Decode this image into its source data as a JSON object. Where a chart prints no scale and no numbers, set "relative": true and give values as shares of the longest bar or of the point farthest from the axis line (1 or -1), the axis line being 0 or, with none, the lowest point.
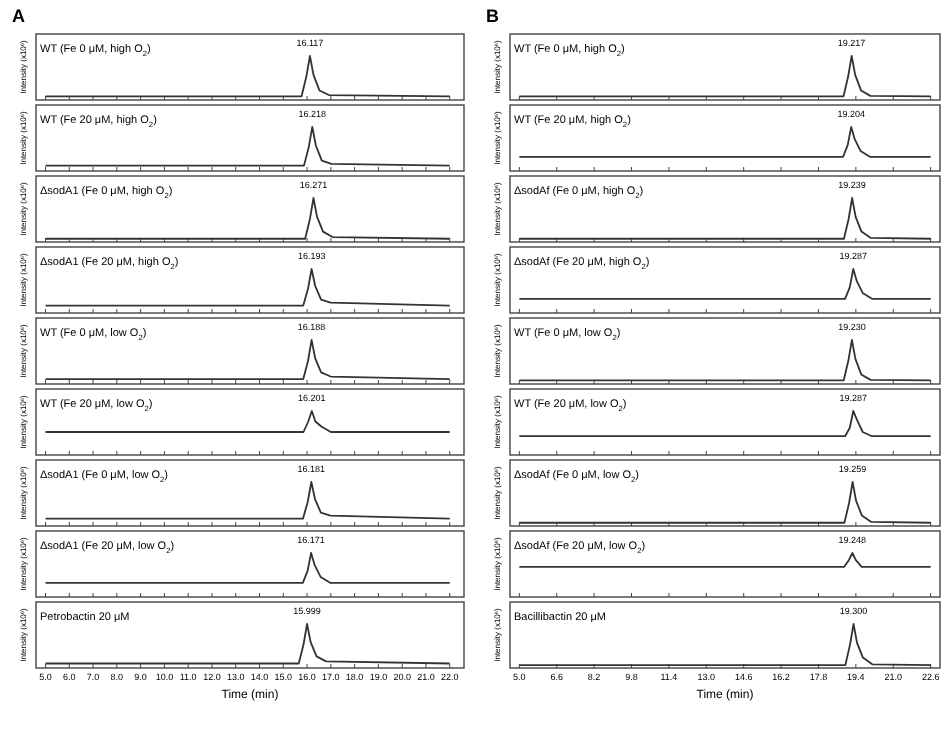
{
  "chart_data": [
    {
      "type": "line",
      "title": "A",
      "ylabel": "Intensity (x10⁶)",
      "relative": true,
      "xlim": [
        4.6,
        22.6
      ],
      "xticks": [
        {
          "value": 5,
          "label": null
        },
        {
          "value": 6,
          "label": null
        },
        {
          "value": 7,
          "label": null
        },
        {
          "value": 8,
          "label": null
        },
        {
          "value": 9,
          "label": null
        },
        {
          "value": 10,
          "label": null
        },
        {
          "value": 11,
          "label": null
        },
        {
          "value": 12,
          "label": null
        },
        {
          "value": 13,
          "label": null
        },
        {
          "value": 14,
          "label": null
        },
        {
          "value": 15,
          "label": null
        },
        {
          "value": 16,
          "label": null
        },
        {
          "value": 17,
          "label": null
        },
        {
          "value": 18,
          "label": null
        },
        {
          "value": 19,
          "label": null
        },
        {
          "value": 20,
          "label": null
        },
        {
          "value": 21,
          "label": null
        },
        {
          "value": 22,
          "label": null
        }
      ],
      "tick_labels": false,
      "series": [
        {
          "color": "#333333",
          "x": [
            5,
            15.77,
            15.97,
            16.12,
            16.27,
            16.52,
            16.92,
            22
          ],
          "values": [
            0.04,
            0.04,
            0.51,
            1,
            0.55,
            0.18,
            0.07,
            0.04
          ]
        }
      ],
      "annotations": [
        "WT (Fe 0 μM, high O$_{2}$)",
        {
          "text": "16.117",
          "x": 16.117,
          "y": 1
        }
      ]
    },
    {
      "type": "line",
      "ylabel": "Intensity (x10⁶)",
      "relative": true,
      "xlim": [
        4.6,
        22.6
      ],
      "xticks": [
        {
          "value": 5,
          "label": null
        },
        {
          "value": 6,
          "label": null
        },
        {
          "value": 7,
          "label": null
        },
        {
          "value": 8,
          "label": null
        },
        {
          "value": 9,
          "label": null
        },
        {
          "value": 10,
          "label": null
        },
        {
          "value": 11,
          "label": null
        },
        {
          "value": 12,
          "label": null
        },
        {
          "value": 13,
          "label": null
        },
        {
          "value": 14,
          "label": null
        },
        {
          "value": 15,
          "label": null
        },
        {
          "value": 16,
          "label": null
        },
        {
          "value": 17,
          "label": null
        },
        {
          "value": 18,
          "label": null
        },
        {
          "value": 19,
          "label": null
        },
        {
          "value": 20,
          "label": null
        },
        {
          "value": 21,
          "label": null
        },
        {
          "value": 22,
          "label": null
        }
      ],
      "tick_labels": false,
      "series": [
        {
          "color": "#333333",
          "x": [
            5,
            15.87,
            16.07,
            16.22,
            16.37,
            16.62,
            17.02,
            22
          ],
          "values": [
            0.08,
            0.08,
            0.52,
            1,
            0.56,
            0.2,
            0.12,
            0.08
          ]
        }
      ],
      "annotations": [
        "WT (Fe 20 μM, high O$_{2}$)",
        {
          "text": "16.218",
          "x": 16.218,
          "y": 1
        }
      ]
    },
    {
      "type": "line",
      "ylabel": "Intensity (x10⁶)",
      "relative": true,
      "xlim": [
        4.6,
        22.6
      ],
      "xticks": [
        {
          "value": 5,
          "label": null
        },
        {
          "value": 6,
          "label": null
        },
        {
          "value": 7,
          "label": null
        },
        {
          "value": 8,
          "label": null
        },
        {
          "value": 9,
          "label": null
        },
        {
          "value": 10,
          "label": null
        },
        {
          "value": 11,
          "label": null
        },
        {
          "value": 12,
          "label": null
        },
        {
          "value": 13,
          "label": null
        },
        {
          "value": 14,
          "label": null
        },
        {
          "value": 15,
          "label": null
        },
        {
          "value": 16,
          "label": null
        },
        {
          "value": 17,
          "label": null
        },
        {
          "value": 18,
          "label": null
        },
        {
          "value": 19,
          "label": null
        },
        {
          "value": 20,
          "label": null
        },
        {
          "value": 21,
          "label": null
        },
        {
          "value": 22,
          "label": null
        }
      ],
      "tick_labels": false,
      "series": [
        {
          "color": "#333333",
          "x": [
            5,
            15.92,
            16.12,
            16.27,
            16.42,
            16.67,
            17.07,
            22
          ],
          "values": [
            0.03,
            0.03,
            0.5,
            1,
            0.55,
            0.2,
            0.07,
            0.03
          ]
        }
      ],
      "annotations": [
        "ΔsodA1 (Fe 0 μM, high O$_{2}$)",
        {
          "text": "16.271",
          "x": 16.271,
          "y": 1
        }
      ]
    },
    {
      "type": "line",
      "ylabel": "Intensity (x10⁶)",
      "relative": true,
      "xlim": [
        4.6,
        22.6
      ],
      "xticks": [
        {
          "value": 5,
          "label": null
        },
        {
          "value": 6,
          "label": null
        },
        {
          "value": 7,
          "label": null
        },
        {
          "value": 8,
          "label": null
        },
        {
          "value": 9,
          "label": null
        },
        {
          "value": 10,
          "label": null
        },
        {
          "value": 11,
          "label": null
        },
        {
          "value": 12,
          "label": null
        },
        {
          "value": 13,
          "label": null
        },
        {
          "value": 14,
          "label": null
        },
        {
          "value": 15,
          "label": null
        },
        {
          "value": 16,
          "label": null
        },
        {
          "value": 17,
          "label": null
        },
        {
          "value": 18,
          "label": null
        },
        {
          "value": 19,
          "label": null
        },
        {
          "value": 20,
          "label": null
        },
        {
          "value": 21,
          "label": null
        },
        {
          "value": 22,
          "label": null
        }
      ],
      "tick_labels": false,
      "series": [
        {
          "color": "#333333",
          "x": [
            5,
            15.84,
            16.04,
            16.19,
            16.34,
            16.59,
            16.99,
            22
          ],
          "values": [
            0.13,
            0.13,
            0.53,
            1,
            0.6,
            0.27,
            0.2,
            0.13
          ]
        }
      ],
      "annotations": [
        "ΔsodA1 (Fe 20 μM, high O$_{2}$)",
        {
          "text": "16.193",
          "x": 16.193,
          "y": 1
        }
      ]
    },
    {
      "type": "line",
      "ylabel": "Intensity (x10⁶)",
      "relative": true,
      "xlim": [
        4.6,
        22.6
      ],
      "xticks": [
        {
          "value": 5,
          "label": null
        },
        {
          "value": 6,
          "label": null
        },
        {
          "value": 7,
          "label": null
        },
        {
          "value": 8,
          "label": null
        },
        {
          "value": 9,
          "label": null
        },
        {
          "value": 10,
          "label": null
        },
        {
          "value": 11,
          "label": null
        },
        {
          "value": 12,
          "label": null
        },
        {
          "value": 13,
          "label": null
        },
        {
          "value": 14,
          "label": null
        },
        {
          "value": 15,
          "label": null
        },
        {
          "value": 16,
          "label": null
        },
        {
          "value": 17,
          "label": null
        },
        {
          "value": 18,
          "label": null
        },
        {
          "value": 19,
          "label": null
        },
        {
          "value": 20,
          "label": null
        },
        {
          "value": 21,
          "label": null
        },
        {
          "value": 22,
          "label": null
        }
      ],
      "tick_labels": false,
      "series": [
        {
          "color": "#333333",
          "x": [
            5,
            15.84,
            16.04,
            16.19,
            16.34,
            16.59,
            16.99,
            22
          ],
          "values": [
            0.07,
            0.07,
            0.5,
            1,
            0.57,
            0.23,
            0.13,
            0.07
          ]
        }
      ],
      "annotations": [
        "WT (Fe 0 μM, low O$_{2}$)",
        {
          "text": "16.188",
          "x": 16.188,
          "y": 1
        }
      ]
    },
    {
      "type": "line",
      "ylabel": "Intensity (x10⁶)",
      "relative": true,
      "xlim": [
        4.6,
        22.6
      ],
      "xticks": [
        {
          "value": 5,
          "label": null
        },
        {
          "value": 6,
          "label": null
        },
        {
          "value": 7,
          "label": null
        },
        {
          "value": 8,
          "label": null
        },
        {
          "value": 9,
          "label": null
        },
        {
          "value": 10,
          "label": null
        },
        {
          "value": 11,
          "label": null
        },
        {
          "value": 12,
          "label": null
        },
        {
          "value": 13,
          "label": null
        },
        {
          "value": 14,
          "label": null
        },
        {
          "value": 15,
          "label": null
        },
        {
          "value": 16,
          "label": null
        },
        {
          "value": 17,
          "label": null
        },
        {
          "value": 18,
          "label": null
        },
        {
          "value": 19,
          "label": null
        },
        {
          "value": 20,
          "label": null
        },
        {
          "value": 21,
          "label": null
        },
        {
          "value": 22,
          "label": null
        }
      ],
      "tick_labels": false,
      "series": [
        {
          "color": "#333333",
          "x": [
            5,
            15.85,
            16.05,
            16.2,
            16.35,
            16.6,
            17,
            22
          ],
          "values": [
            0.5,
            0.5,
            0.75,
            1,
            0.75,
            0.63,
            0.5,
            0.5
          ]
        }
      ],
      "annotations": [
        "WT (Fe 20 μM, low O$_{2}$)",
        {
          "text": "16.201",
          "x": 16.201,
          "y": 1
        }
      ]
    },
    {
      "type": "line",
      "ylabel": "Intensity (x10⁶)",
      "relative": true,
      "xlim": [
        4.6,
        22.6
      ],
      "xticks": [
        {
          "value": 5,
          "label": null
        },
        {
          "value": 6,
          "label": null
        },
        {
          "value": 7,
          "label": null
        },
        {
          "value": 8,
          "label": null
        },
        {
          "value": 9,
          "label": null
        },
        {
          "value": 10,
          "label": null
        },
        {
          "value": 11,
          "label": null
        },
        {
          "value": 12,
          "label": null
        },
        {
          "value": 13,
          "label": null
        },
        {
          "value": 14,
          "label": null
        },
        {
          "value": 15,
          "label": null
        },
        {
          "value": 16,
          "label": null
        },
        {
          "value": 17,
          "label": null
        },
        {
          "value": 18,
          "label": null
        },
        {
          "value": 19,
          "label": null
        },
        {
          "value": 20,
          "label": null
        },
        {
          "value": 21,
          "label": null
        },
        {
          "value": 22,
          "label": null
        }
      ],
      "tick_labels": false,
      "series": [
        {
          "color": "#333333",
          "x": [
            5,
            15.83,
            16.03,
            16.18,
            16.33,
            16.58,
            16.98,
            22
          ],
          "values": [
            0.13,
            0.13,
            0.53,
            1,
            0.6,
            0.27,
            0.2,
            0.13
          ]
        }
      ],
      "annotations": [
        "ΔsodA1 (Fe 0 μM, low O$_{2}$)",
        {
          "text": "16.181",
          "x": 16.181,
          "y": 1
        }
      ]
    },
    {
      "type": "line",
      "ylabel": "Intensity (x10⁶)",
      "relative": true,
      "xlim": [
        4.6,
        22.6
      ],
      "xticks": [
        {
          "value": 5,
          "label": null
        },
        {
          "value": 6,
          "label": null
        },
        {
          "value": 7,
          "label": null
        },
        {
          "value": 8,
          "label": null
        },
        {
          "value": 9,
          "label": null
        },
        {
          "value": 10,
          "label": null
        },
        {
          "value": 11,
          "label": null
        },
        {
          "value": 12,
          "label": null
        },
        {
          "value": 13,
          "label": null
        },
        {
          "value": 14,
          "label": null
        },
        {
          "value": 15,
          "label": null
        },
        {
          "value": 16,
          "label": null
        },
        {
          "value": 17,
          "label": null
        },
        {
          "value": 18,
          "label": null
        },
        {
          "value": 19,
          "label": null
        },
        {
          "value": 20,
          "label": null
        },
        {
          "value": 21,
          "label": null
        },
        {
          "value": 22,
          "label": null
        }
      ],
      "tick_labels": false,
      "series": [
        {
          "color": "#333333",
          "x": [
            5,
            15.82,
            16.02,
            16.17,
            16.32,
            16.57,
            16.97,
            22
          ],
          "values": [
            0.29,
            0.29,
            0.57,
            1,
            0.71,
            0.43,
            0.29,
            0.29
          ]
        }
      ],
      "annotations": [
        "ΔsodA1 (Fe 20 μM, low O$_{2}$)",
        {
          "text": "16.171",
          "x": 16.171,
          "y": 1
        }
      ]
    },
    {
      "type": "line",
      "xlabel": "Time (min)",
      "ylabel": "Intensity (x10⁶)",
      "relative": true,
      "xlim": [
        4.6,
        22.6
      ],
      "xticks": [
        {
          "value": 5,
          "label": "5.0"
        },
        {
          "value": 6,
          "label": "6.0"
        },
        {
          "value": 7,
          "label": "7.0"
        },
        {
          "value": 8,
          "label": "8.0"
        },
        {
          "value": 9,
          "label": "9.0"
        },
        {
          "value": 10,
          "label": "10.0"
        },
        {
          "value": 11,
          "label": "11.0"
        },
        {
          "value": 12,
          "label": "12.0"
        },
        {
          "value": 13,
          "label": "13.0"
        },
        {
          "value": 14,
          "label": "14.0"
        },
        {
          "value": 15,
          "label": "15.0"
        },
        {
          "value": 16,
          "label": "16.0"
        },
        {
          "value": 17,
          "label": "17.0"
        },
        {
          "value": 18,
          "label": "18.0"
        },
        {
          "value": 19,
          "label": "19.0"
        },
        {
          "value": 20,
          "label": "20.0"
        },
        {
          "value": 21,
          "label": "21.0"
        },
        {
          "value": 22,
          "label": "22.0"
        }
      ],
      "tick_labels": "x",
      "series": [
        {
          "color": "#333333",
          "x": [
            5,
            15.65,
            15.85,
            16,
            16.15,
            16.4,
            16.8,
            22
          ],
          "values": [
            0.06,
            0.06,
            0.51,
            1,
            0.57,
            0.23,
            0.11,
            0.06
          ]
        }
      ],
      "annotations": [
        "Petrobactin 20 μM",
        {
          "text": "15.999",
          "x": 15.999,
          "y": 1
        }
      ]
    },
    {
      "type": "line",
      "title": "B",
      "ylabel": "Intensity (x10⁶)",
      "relative": true,
      "xlim": [
        4.6,
        23.0
      ],
      "xticks": [
        {
          "value": 5,
          "label": null
        },
        {
          "value": 6.6,
          "label": null
        },
        {
          "value": 8.2,
          "label": null
        },
        {
          "value": 9.8,
          "label": null
        },
        {
          "value": 11.4,
          "label": null
        },
        {
          "value": 13,
          "label": null
        },
        {
          "value": 14.6,
          "label": null
        },
        {
          "value": 16.2,
          "label": null
        },
        {
          "value": 17.8,
          "label": null
        },
        {
          "value": 19.4,
          "label": null
        },
        {
          "value": 21,
          "label": null
        },
        {
          "value": 22.6,
          "label": null
        }
      ],
      "tick_labels": false,
      "series": [
        {
          "color": "#333333",
          "x": [
            5,
            18.87,
            19.07,
            19.22,
            19.37,
            19.62,
            20.02,
            22.6
          ],
          "values": [
            0.04,
            0.04,
            0.51,
            1,
            0.55,
            0.18,
            0.05,
            0.04
          ]
        }
      ],
      "annotations": [
        "WT (Fe 0 μM, high O$_{2}$)",
        {
          "text": "19.217",
          "x": 19.217,
          "y": 1
        }
      ]
    },
    {
      "type": "line",
      "ylabel": "Intensity (x10⁶)",
      "relative": true,
      "xlim": [
        4.6,
        23.0
      ],
      "xticks": [
        {
          "value": 5,
          "label": null
        },
        {
          "value": 6.6,
          "label": null
        },
        {
          "value": 8.2,
          "label": null
        },
        {
          "value": 9.8,
          "label": null
        },
        {
          "value": 11.4,
          "label": null
        },
        {
          "value": 13,
          "label": null
        },
        {
          "value": 14.6,
          "label": null
        },
        {
          "value": 16.2,
          "label": null
        },
        {
          "value": 17.8,
          "label": null
        },
        {
          "value": 19.4,
          "label": null
        },
        {
          "value": 21,
          "label": null
        },
        {
          "value": 22.6,
          "label": null
        }
      ],
      "tick_labels": false,
      "series": [
        {
          "color": "#333333",
          "x": [
            5,
            18.85,
            19.05,
            19.2,
            19.35,
            19.6,
            20,
            22.6
          ],
          "values": [
            0.29,
            0.29,
            0.57,
            1,
            0.71,
            0.43,
            0.29,
            0.29
          ]
        }
      ],
      "annotations": [
        "WT (Fe 20 μM, high O$_{2}$)",
        {
          "text": "19.204",
          "x": 19.204,
          "y": 1
        }
      ]
    },
    {
      "type": "line",
      "ylabel": "Intensity (x10⁶)",
      "relative": true,
      "xlim": [
        4.6,
        23.0
      ],
      "xticks": [
        {
          "value": 5,
          "label": null
        },
        {
          "value": 6.6,
          "label": null
        },
        {
          "value": 8.2,
          "label": null
        },
        {
          "value": 9.8,
          "label": null
        },
        {
          "value": 11.4,
          "label": null
        },
        {
          "value": 13,
          "label": null
        },
        {
          "value": 14.6,
          "label": null
        },
        {
          "value": 16.2,
          "label": null
        },
        {
          "value": 17.8,
          "label": null
        },
        {
          "value": 19.4,
          "label": null
        },
        {
          "value": 21,
          "label": null
        },
        {
          "value": 22.6,
          "label": null
        }
      ],
      "tick_labels": false,
      "series": [
        {
          "color": "#333333",
          "x": [
            5,
            18.89,
            19.09,
            19.24,
            19.39,
            19.64,
            20.04,
            22.6
          ],
          "values": [
            0.03,
            0.03,
            0.5,
            1,
            0.55,
            0.2,
            0.05,
            0.03
          ]
        }
      ],
      "annotations": [
        "ΔsodAf (Fe 0 μM, high O$_{2}$)",
        {
          "text": "19.239",
          "x": 19.239,
          "y": 1
        }
      ]
    },
    {
      "type": "line",
      "ylabel": "Intensity (x10⁶)",
      "relative": true,
      "xlim": [
        4.6,
        23.0
      ],
      "xticks": [
        {
          "value": 5,
          "label": null
        },
        {
          "value": 6.6,
          "label": null
        },
        {
          "value": 8.2,
          "label": null
        },
        {
          "value": 9.8,
          "label": null
        },
        {
          "value": 11.4,
          "label": null
        },
        {
          "value": 13,
          "label": null
        },
        {
          "value": 14.6,
          "label": null
        },
        {
          "value": 16.2,
          "label": null
        },
        {
          "value": 17.8,
          "label": null
        },
        {
          "value": 19.4,
          "label": null
        },
        {
          "value": 21,
          "label": null
        },
        {
          "value": 22.6,
          "label": null
        }
      ],
      "tick_labels": false,
      "series": [
        {
          "color": "#333333",
          "x": [
            5,
            18.94,
            19.14,
            19.29,
            19.44,
            19.69,
            20.09,
            22.6
          ],
          "values": [
            0.29,
            0.29,
            0.57,
            1,
            0.71,
            0.43,
            0.29,
            0.29
          ]
        }
      ],
      "annotations": [
        "ΔsodAf (Fe 20 μM, high O$_{2}$)",
        {
          "text": "19.287",
          "x": 19.287,
          "y": 1
        }
      ]
    },
    {
      "type": "line",
      "ylabel": "Intensity (x10⁶)",
      "relative": true,
      "xlim": [
        4.6,
        23.0
      ],
      "xticks": [
        {
          "value": 5,
          "label": null
        },
        {
          "value": 6.6,
          "label": null
        },
        {
          "value": 8.2,
          "label": null
        },
        {
          "value": 9.8,
          "label": null
        },
        {
          "value": 11.4,
          "label": null
        },
        {
          "value": 13,
          "label": null
        },
        {
          "value": 14.6,
          "label": null
        },
        {
          "value": 16.2,
          "label": null
        },
        {
          "value": 17.8,
          "label": null
        },
        {
          "value": 19.4,
          "label": null
        },
        {
          "value": 21,
          "label": null
        },
        {
          "value": 22.6,
          "label": null
        }
      ],
      "tick_labels": false,
      "series": [
        {
          "color": "#333333",
          "x": [
            5,
            18.88,
            19.08,
            19.23,
            19.38,
            19.63,
            20.03,
            22.6
          ],
          "values": [
            0.04,
            0.04,
            0.51,
            1,
            0.55,
            0.18,
            0.05,
            0.04
          ]
        }
      ],
      "annotations": [
        "WT (Fe 0 μM, low O$_{2}$)",
        {
          "text": "19.230",
          "x": 19.23,
          "y": 1
        }
      ]
    },
    {
      "type": "line",
      "ylabel": "Intensity (x10⁶)",
      "relative": true,
      "xlim": [
        4.6,
        23.0
      ],
      "xticks": [
        {
          "value": 5,
          "label": null
        },
        {
          "value": 6.6,
          "label": null
        },
        {
          "value": 8.2,
          "label": null
        },
        {
          "value": 9.8,
          "label": null
        },
        {
          "value": 11.4,
          "label": null
        },
        {
          "value": 13,
          "label": null
        },
        {
          "value": 14.6,
          "label": null
        },
        {
          "value": 16.2,
          "label": null
        },
        {
          "value": 17.8,
          "label": null
        },
        {
          "value": 19.4,
          "label": null
        },
        {
          "value": 21,
          "label": null
        },
        {
          "value": 22.6,
          "label": null
        }
      ],
      "tick_labels": false,
      "series": [
        {
          "color": "#333333",
          "x": [
            5,
            18.94,
            19.14,
            19.29,
            19.44,
            19.69,
            20.09,
            22.6
          ],
          "values": [
            0.4,
            0.4,
            0.6,
            1,
            0.8,
            0.5,
            0.4,
            0.4
          ]
        }
      ],
      "annotations": [
        "WT (Fe 20 μM, low O$_{2}$)",
        {
          "text": "19.287",
          "x": 19.287,
          "y": 1
        }
      ]
    },
    {
      "type": "line",
      "ylabel": "Intensity (x10⁶)",
      "relative": true,
      "xlim": [
        4.6,
        23.0
      ],
      "xticks": [
        {
          "value": 5,
          "label": null
        },
        {
          "value": 6.6,
          "label": null
        },
        {
          "value": 8.2,
          "label": null
        },
        {
          "value": 9.8,
          "label": null
        },
        {
          "value": 11.4,
          "label": null
        },
        {
          "value": 13,
          "label": null
        },
        {
          "value": 14.6,
          "label": null
        },
        {
          "value": 16.2,
          "label": null
        },
        {
          "value": 17.8,
          "label": null
        },
        {
          "value": 19.4,
          "label": null
        },
        {
          "value": 21,
          "label": null
        },
        {
          "value": 22.6,
          "label": null
        }
      ],
      "tick_labels": false,
      "series": [
        {
          "color": "#333333",
          "x": [
            5,
            18.91,
            19.11,
            19.26,
            19.41,
            19.66,
            20.06,
            22.6
          ],
          "values": [
            0.03,
            0.03,
            0.5,
            1,
            0.55,
            0.2,
            0.05,
            0.03
          ]
        }
      ],
      "annotations": [
        "ΔsodAf (Fe 0 μM, low O$_{2}$)",
        {
          "text": "19.259",
          "x": 19.259,
          "y": 1
        }
      ]
    },
    {
      "type": "line",
      "ylabel": "Intensity (x10⁶)",
      "relative": true,
      "xlim": [
        4.6,
        23.0
      ],
      "xticks": [
        {
          "value": 5,
          "label": null
        },
        {
          "value": 6.6,
          "label": null
        },
        {
          "value": 8.2,
          "label": null
        },
        {
          "value": 9.8,
          "label": null
        },
        {
          "value": 11.4,
          "label": null
        },
        {
          "value": 13,
          "label": null
        },
        {
          "value": 14.6,
          "label": null
        },
        {
          "value": 16.2,
          "label": null
        },
        {
          "value": 17.8,
          "label": null
        },
        {
          "value": 19.4,
          "label": null
        },
        {
          "value": 21,
          "label": null
        },
        {
          "value": 22.6,
          "label": null
        }
      ],
      "tick_labels": false,
      "series": [
        {
          "color": "#333333",
          "x": [
            5,
            18.9,
            19.1,
            19.25,
            19.4,
            19.65,
            20.05,
            22.6
          ],
          "values": [
            0.67,
            0.67,
            0.83,
            1,
            0.83,
            0.67,
            0.67,
            0.67
          ]
        }
      ],
      "annotations": [
        "ΔsodAf (Fe 20 μM, low O$_{2}$)",
        {
          "text": "19.248",
          "x": 19.248,
          "y": 1
        }
      ]
    },
    {
      "type": "line",
      "xlabel": "Time (min)",
      "ylabel": "Intensity (x10⁶)",
      "relative": true,
      "xlim": [
        4.6,
        23.0
      ],
      "xticks": [
        {
          "value": 5,
          "label": "5.0"
        },
        6.6,
        8.2,
        9.8,
        11.4,
        {
          "value": 13,
          "label": "13.0"
        },
        14.6,
        16.2,
        17.8,
        19.4,
        {
          "value": 21,
          "label": "21.0"
        },
        22.6
      ],
      "tick_labels": "x",
      "series": [
        {
          "color": "#333333",
          "x": [
            5,
            18.95,
            19.15,
            19.3,
            19.45,
            19.7,
            20.1,
            22.6
          ],
          "values": [
            0.02,
            0.02,
            0.51,
            1,
            0.55,
            0.2,
            0.04,
            0.02
          ]
        }
      ],
      "annotations": [
        "Bacillibactin 20 μM",
        {
          "text": "19.300",
          "x": 19.3,
          "y": 1
        }
      ]
    }
  ]
}
